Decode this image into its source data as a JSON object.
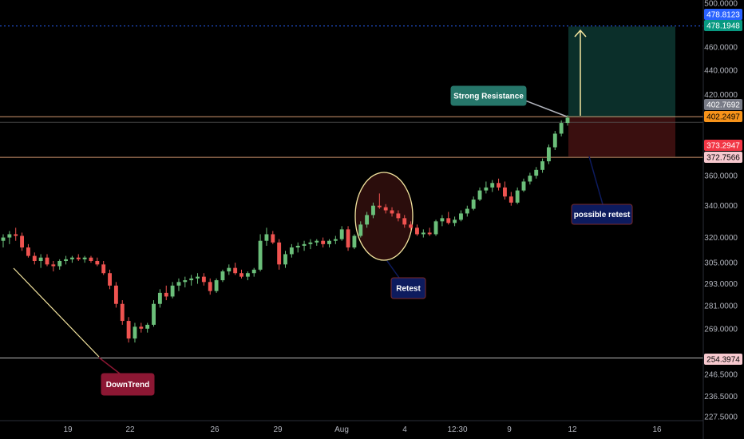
{
  "chart_data": {
    "type": "candlestick",
    "y_axis": {
      "scale": "log",
      "ylim": [
        223,
        500
      ],
      "ticks": [
        "500.0000",
        "460.0000",
        "440.0000",
        "420.0000",
        "360.0000",
        "340.0000",
        "320.0000",
        "305.0000",
        "293.0000",
        "281.0000",
        "269.0000",
        "246.5000",
        "236.5000",
        "227.5000"
      ]
    },
    "x_axis": {
      "ticks": [
        "19",
        "22",
        "26",
        "29",
        "Aug",
        "4",
        "12:30",
        "9",
        "12",
        "16"
      ]
    },
    "price_tags": [
      {
        "label": "478.8123",
        "value": 478.8123,
        "bg": "#2962ff",
        "fg": "#ffffff"
      },
      {
        "label": "478.1948",
        "value": 478.1948,
        "bg": "#089981",
        "fg": "#ffffff"
      },
      {
        "label": "402.7692",
        "value": 402.7692,
        "bg": "#787b86",
        "fg": "#ffffff"
      },
      {
        "label": "402.2497",
        "value": 402.2497,
        "bg": "#f7931a",
        "fg": "#000000"
      },
      {
        "label": "373.2947",
        "value": 373.2947,
        "bg": "#f23645",
        "fg": "#ffffff"
      },
      {
        "label": "372.7566",
        "value": 372.7566,
        "bg": "#f7c9cf",
        "fg": "#000000"
      },
      {
        "label": "254.3974",
        "value": 254.3974,
        "bg": "#f7c9cf",
        "fg": "#000000"
      }
    ],
    "horizontal_levels": [
      {
        "value": 402.77,
        "color": "#e8a87c"
      },
      {
        "value": 398.5,
        "color": "#555555"
      },
      {
        "value": 372.76,
        "color": "#e8a87c"
      },
      {
        "value": 254.4,
        "color": "#cccccc"
      }
    ],
    "dotted_level": {
      "value": 478.8,
      "color": "#2962ff"
    },
    "position": {
      "entry": 402.25,
      "target": 478.19,
      "stop": 373.29,
      "profit_color": "#0b2f2a",
      "loss_color": "#3a0f0f"
    },
    "annotations": [
      {
        "text": "Strong Resistance",
        "bg": "#26766a",
        "border": "#26766a"
      },
      {
        "text": "possible retest",
        "bg": "#0d1b5e",
        "border": "#7b2a2a"
      },
      {
        "text": "Retest",
        "bg": "#0d1b5e",
        "border": "#7b2a2a"
      },
      {
        "text": "DownTrend",
        "bg": "#8c1733",
        "border": "#8c1733"
      }
    ],
    "colors": {
      "up": "#26a69a",
      "up_fill": "#6bbf7a",
      "down": "#ef5350"
    },
    "candles": [
      [
        318,
        322,
        314,
        320
      ],
      [
        320,
        324,
        316,
        322
      ],
      [
        322,
        326,
        318,
        321
      ],
      [
        321,
        323,
        312,
        314
      ],
      [
        314,
        316,
        308,
        309
      ],
      [
        309,
        311,
        304,
        306
      ],
      [
        306,
        310,
        302,
        308
      ],
      [
        308,
        310,
        303,
        304
      ],
      [
        304,
        306,
        300,
        303
      ],
      [
        303,
        307,
        301,
        306
      ],
      [
        306,
        309,
        304,
        307
      ],
      [
        307,
        309,
        305,
        308
      ],
      [
        308,
        310,
        306,
        307
      ],
      [
        307,
        309,
        305,
        308
      ],
      [
        308,
        309,
        305,
        306
      ],
      [
        306,
        308,
        303,
        304
      ],
      [
        304,
        306,
        298,
        299
      ],
      [
        299,
        301,
        290,
        292
      ],
      [
        292,
        294,
        280,
        282
      ],
      [
        282,
        284,
        271,
        273
      ],
      [
        273,
        275,
        262,
        264
      ],
      [
        264,
        272,
        262,
        270
      ],
      [
        270,
        272,
        267,
        269
      ],
      [
        269,
        272,
        267,
        271
      ],
      [
        271,
        284,
        270,
        282
      ],
      [
        282,
        290,
        280,
        288
      ],
      [
        288,
        292,
        284,
        286
      ],
      [
        286,
        294,
        285,
        292
      ],
      [
        292,
        296,
        289,
        294
      ],
      [
        294,
        297,
        291,
        295
      ],
      [
        295,
        298,
        292,
        296
      ],
      [
        296,
        299,
        293,
        297
      ],
      [
        297,
        299,
        292,
        294
      ],
      [
        294,
        296,
        287,
        289
      ],
      [
        289,
        296,
        288,
        295
      ],
      [
        295,
        301,
        294,
        300
      ],
      [
        300,
        304,
        298,
        302
      ],
      [
        302,
        305,
        298,
        299
      ],
      [
        299,
        301,
        296,
        297
      ],
      [
        297,
        300,
        295,
        299
      ],
      [
        299,
        302,
        297,
        301
      ],
      [
        301,
        322,
        300,
        318
      ],
      [
        318,
        326,
        315,
        322
      ],
      [
        322,
        324,
        316,
        317
      ],
      [
        317,
        319,
        301,
        304
      ],
      [
        304,
        312,
        302,
        310
      ],
      [
        310,
        316,
        308,
        314
      ],
      [
        314,
        317,
        311,
        315
      ],
      [
        315,
        318,
        312,
        316
      ],
      [
        316,
        319,
        313,
        317
      ],
      [
        317,
        319,
        315,
        318
      ],
      [
        318,
        320,
        314,
        316
      ],
      [
        316,
        319,
        314,
        318
      ],
      [
        318,
        321,
        316,
        319
      ],
      [
        319,
        327,
        318,
        325
      ],
      [
        325,
        327,
        312,
        314
      ],
      [
        314,
        322,
        313,
        321
      ],
      [
        321,
        330,
        320,
        328
      ],
      [
        328,
        336,
        326,
        334
      ],
      [
        334,
        342,
        332,
        340
      ],
      [
        340,
        348,
        338,
        339
      ],
      [
        339,
        341,
        335,
        337
      ],
      [
        337,
        339,
        333,
        335
      ],
      [
        335,
        337,
        330,
        332
      ],
      [
        332,
        334,
        326,
        328
      ],
      [
        328,
        330,
        324,
        326
      ],
      [
        326,
        328,
        321,
        322
      ],
      [
        322,
        325,
        320,
        323
      ],
      [
        323,
        326,
        321,
        322
      ],
      [
        322,
        331,
        321,
        330
      ],
      [
        330,
        334,
        327,
        332
      ],
      [
        332,
        336,
        328,
        329
      ],
      [
        329,
        333,
        327,
        331
      ],
      [
        331,
        337,
        330,
        335
      ],
      [
        335,
        340,
        333,
        338
      ],
      [
        338,
        346,
        337,
        344
      ],
      [
        344,
        352,
        343,
        350
      ],
      [
        350,
        356,
        348,
        352
      ],
      [
        352,
        357,
        349,
        355
      ],
      [
        355,
        358,
        350,
        352
      ],
      [
        352,
        356,
        344,
        346
      ],
      [
        346,
        349,
        340,
        342
      ],
      [
        342,
        352,
        341,
        350
      ],
      [
        350,
        358,
        349,
        356
      ],
      [
        356,
        362,
        354,
        360
      ],
      [
        360,
        366,
        358,
        364
      ],
      [
        364,
        372,
        362,
        370
      ],
      [
        370,
        382,
        368,
        380
      ],
      [
        380,
        392,
        378,
        390
      ],
      [
        390,
        400,
        388,
        398
      ],
      [
        398,
        404,
        396,
        402
      ]
    ]
  }
}
